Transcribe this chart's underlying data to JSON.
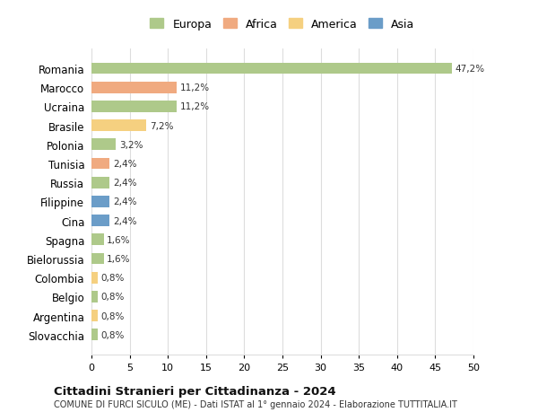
{
  "countries": [
    "Romania",
    "Marocco",
    "Ucraina",
    "Brasile",
    "Polonia",
    "Tunisia",
    "Russia",
    "Filippine",
    "Cina",
    "Spagna",
    "Bielorussia",
    "Colombia",
    "Belgio",
    "Argentina",
    "Slovacchia"
  ],
  "values": [
    47.2,
    11.2,
    11.2,
    7.2,
    3.2,
    2.4,
    2.4,
    2.4,
    2.4,
    1.6,
    1.6,
    0.8,
    0.8,
    0.8,
    0.8
  ],
  "labels": [
    "47,2%",
    "11,2%",
    "11,2%",
    "7,2%",
    "3,2%",
    "2,4%",
    "2,4%",
    "2,4%",
    "2,4%",
    "1,6%",
    "1,6%",
    "0,8%",
    "0,8%",
    "0,8%",
    "0,8%"
  ],
  "continents": [
    "Europa",
    "Africa",
    "Europa",
    "America",
    "Europa",
    "Africa",
    "Europa",
    "Asia",
    "Asia",
    "Europa",
    "Europa",
    "America",
    "Europa",
    "America",
    "Europa"
  ],
  "continent_colors": {
    "Europa": "#aec98a",
    "Africa": "#f0aa80",
    "America": "#f5d080",
    "Asia": "#6b9dc8"
  },
  "legend_order": [
    "Europa",
    "Africa",
    "America",
    "Asia"
  ],
  "xlim": [
    0,
    50
  ],
  "xticks": [
    0,
    5,
    10,
    15,
    20,
    25,
    30,
    35,
    40,
    45,
    50
  ],
  "title": "Cittadini Stranieri per Cittadinanza - 2024",
  "subtitle": "COMUNE DI FURCI SICULO (ME) - Dati ISTAT al 1° gennaio 2024 - Elaborazione TUTTITALIA.IT",
  "background_color": "#ffffff",
  "grid_color": "#dddddd",
  "bar_height": 0.6
}
